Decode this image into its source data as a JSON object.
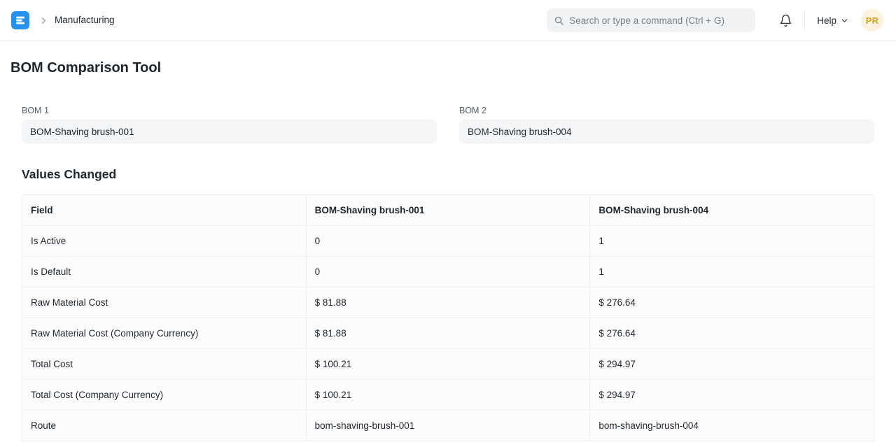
{
  "navbar": {
    "breadcrumb": "Manufacturing",
    "search_placeholder": "Search or type a command (Ctrl + G)",
    "help_label": "Help",
    "avatar_initials": "PR"
  },
  "page": {
    "title": "BOM Comparison Tool",
    "fields": [
      {
        "label": "BOM 1",
        "value": "BOM-Shaving brush-001"
      },
      {
        "label": "BOM 2",
        "value": "BOM-Shaving brush-004"
      }
    ],
    "section_title": "Values Changed",
    "table": {
      "columns": [
        "Field",
        "BOM-Shaving brush-001",
        "BOM-Shaving brush-004"
      ],
      "rows": [
        [
          "Is Active",
          "0",
          "1"
        ],
        [
          "Is Default",
          "0",
          "1"
        ],
        [
          "Raw Material Cost",
          "$ 81.88",
          "$ 276.64"
        ],
        [
          "Raw Material Cost (Company Currency)",
          "$ 81.88",
          "$ 276.64"
        ],
        [
          "Total Cost",
          "$ 100.21",
          "$ 294.97"
        ],
        [
          "Total Cost (Company Currency)",
          "$ 100.21",
          "$ 294.97"
        ],
        [
          "Route",
          "bom-shaving-brush-001",
          "bom-shaving-brush-004"
        ]
      ]
    }
  },
  "colors": {
    "brand_blue": "#2490ef",
    "avatar_bg": "#fdf1df",
    "avatar_text": "#db9e1f",
    "input_bg": "#f4f5f6",
    "search_bg": "#f1f2f4",
    "border": "#eef0f2"
  },
  "icons": {
    "logo": "erpnext-logo-icon",
    "breadcrumb_sep": "chevron-right-icon",
    "search": "search-icon",
    "notifications": "bell-icon",
    "help_caret": "chevron-down-icon"
  }
}
